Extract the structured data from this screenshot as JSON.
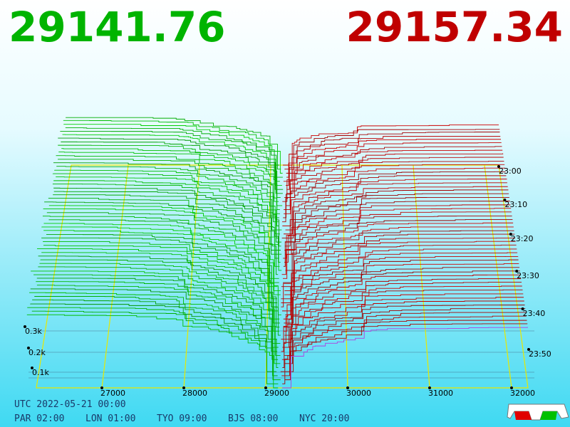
{
  "header": {
    "bid": "29141.76",
    "ask": "29157.34"
  },
  "axes": {
    "price_ticks": [
      "27000",
      "28000",
      "29000",
      "30000",
      "31000",
      "32000"
    ],
    "depth_ticks": [
      "0.3k",
      "0.2k",
      "0.1k"
    ],
    "time_ticks": [
      "23:00",
      "23:10",
      "23:20",
      "23:30",
      "23:40",
      "23:50"
    ]
  },
  "footer": {
    "utc": "UTC 2022-05-21 00:00",
    "zones": [
      "PAR 02:00",
      "LON 01:00",
      "TYO 09:00",
      "BJS 08:00",
      "NYC 20:00"
    ]
  }
}
